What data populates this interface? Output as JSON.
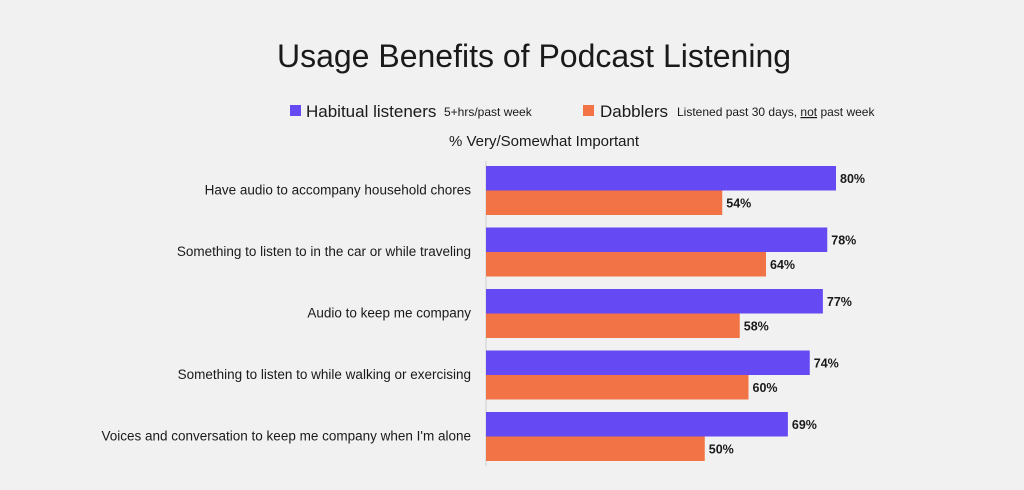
{
  "colors": {
    "background": "#f1f1f1",
    "habitual": "#6549f2",
    "dabblers": "#f27446",
    "axis": "#d0d0d0"
  },
  "legend": {
    "items": [
      {
        "label": "Habitual listeners",
        "note_parts": [
          "5+hrs/past week"
        ]
      },
      {
        "label": "Dabblers",
        "note_parts": [
          "Listened past 30 days, ",
          "not",
          " past week"
        ]
      }
    ]
  },
  "chart_data": {
    "type": "bar",
    "orientation": "horizontal",
    "title": "Usage Benefits of Podcast Listening",
    "subtitle": "% Very/Somewhat Important",
    "categories": [
      "Have audio to accompany household chores",
      "Something to listen to in the car or while traveling",
      "Audio to keep me company",
      "Something to listen to while walking or exercising",
      "Voices and conversation to keep me company when I'm alone"
    ],
    "series": [
      {
        "name": "Habitual listeners",
        "values": [
          80,
          78,
          77,
          74,
          69
        ],
        "labels": [
          "80%",
          "78%",
          "77%",
          "74%",
          "69%"
        ]
      },
      {
        "name": "Dabblers",
        "values": [
          54,
          64,
          58,
          60,
          50
        ],
        "labels": [
          "54%",
          "64%",
          "58%",
          "60%",
          "50%"
        ]
      }
    ],
    "xlim": [
      0,
      100
    ],
    "grid": false,
    "legend_position": "top"
  }
}
